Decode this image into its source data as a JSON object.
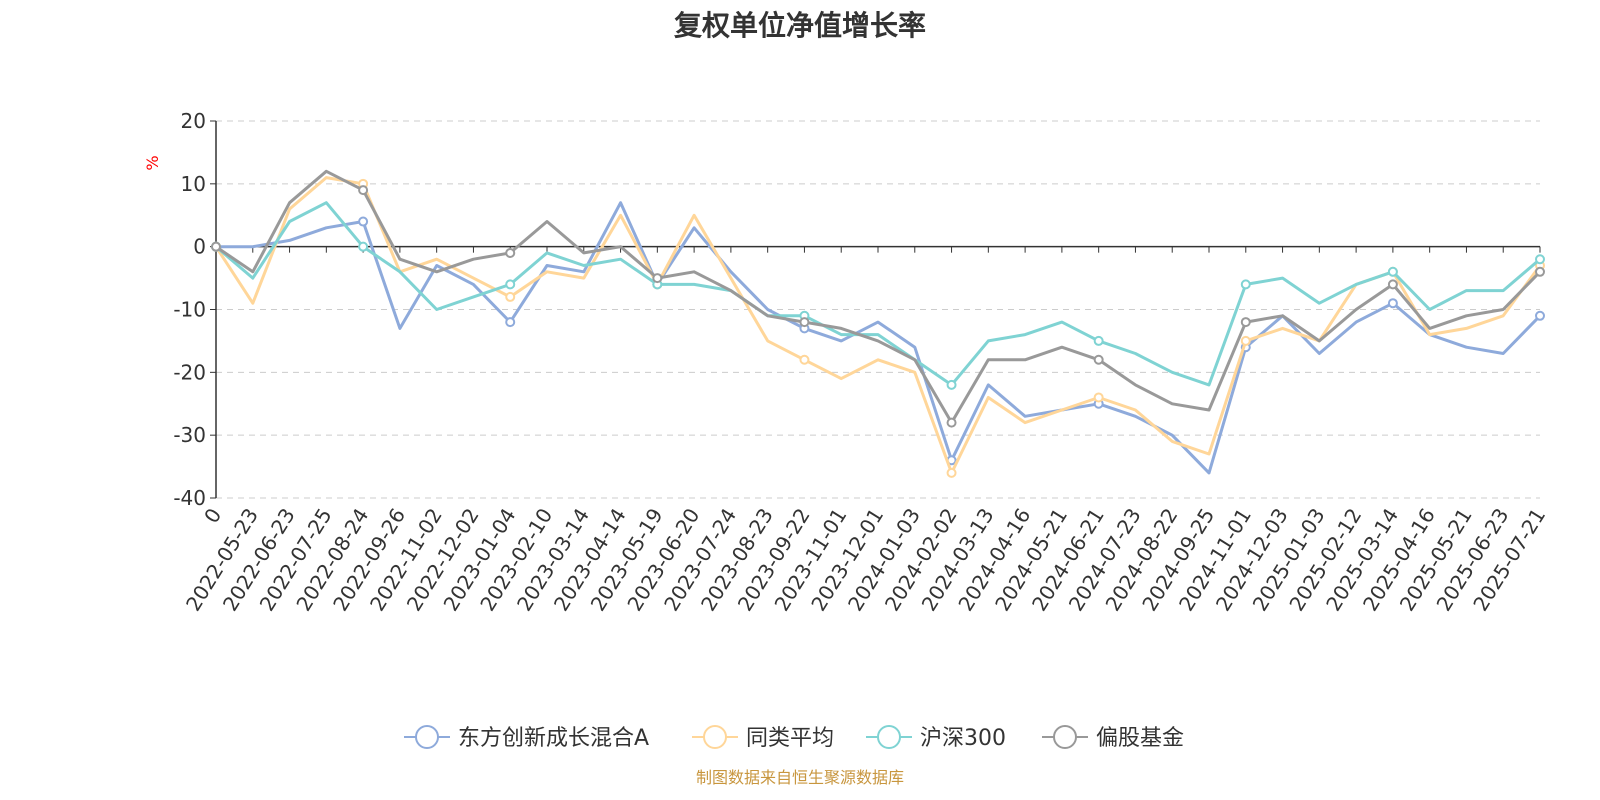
{
  "title": "复权单位净值增长率",
  "source": "制图数据来自恒生聚源数据库",
  "colors": {
    "fund": "#8eaadb",
    "peer": "#ffd699",
    "hs300": "#7fd3d3",
    "equity": "#999999",
    "axis": "#333333",
    "grid": "#cccccc",
    "ylabel": "#ff0000",
    "source": "#c8963e"
  },
  "chart_data": {
    "type": "line",
    "ylabel": "%",
    "ylim": [
      -40,
      20
    ],
    "yticks": [
      "20",
      "10",
      "0",
      "-10",
      "-20",
      "-30",
      "-40"
    ],
    "grid": true,
    "legend_position": "bottom",
    "x": [
      "0",
      "2022-05-23",
      "2022-06-23",
      "2022-07-25",
      "2022-08-24",
      "2022-09-26",
      "2022-11-02",
      "2022-12-02",
      "2023-01-04",
      "2023-02-10",
      "2023-03-14",
      "2023-04-14",
      "2023-05-19",
      "2023-06-20",
      "2023-07-24",
      "2023-08-23",
      "2023-09-22",
      "2023-11-01",
      "2023-12-01",
      "2024-01-03",
      "2024-02-02",
      "2024-03-13",
      "2024-04-16",
      "2024-05-21",
      "2024-06-21",
      "2024-07-23",
      "2024-08-22",
      "2024-09-25",
      "2024-11-01",
      "2024-12-03",
      "2025-01-03",
      "2025-02-12",
      "2025-03-14",
      "2025-04-16",
      "2025-05-21",
      "2025-06-23",
      "2025-07-21"
    ],
    "series": [
      {
        "name": "东方创新成长混合A",
        "values": [
          0,
          0,
          1,
          3,
          4,
          -13,
          -3,
          -6,
          -12,
          -3,
          -4,
          7,
          -6,
          3,
          -4,
          -10,
          -13,
          -15,
          -12,
          -16,
          -34,
          -22,
          -27,
          -26,
          -25,
          -27,
          -30,
          -36,
          -16,
          -11,
          -17,
          -12,
          -9,
          -14,
          -16,
          -17,
          -11
        ]
      },
      {
        "name": "同类平均",
        "values": [
          0,
          -9,
          6,
          11,
          10,
          -4,
          -2,
          -5,
          -8,
          -4,
          -5,
          5,
          -6,
          5,
          -5,
          -15,
          -18,
          -21,
          -18,
          -20,
          -36,
          -24,
          -28,
          -26,
          -24,
          -26,
          -31,
          -33,
          -15,
          -13,
          -15,
          -6,
          -4,
          -14,
          -13,
          -11,
          -3
        ]
      },
      {
        "name": "沪深300",
        "values": [
          0,
          -5,
          4,
          7,
          0,
          -4,
          -10,
          -8,
          -6,
          -1,
          -3,
          -2,
          -6,
          -6,
          -7,
          -11,
          -11,
          -14,
          -14,
          -18,
          -22,
          -15,
          -14,
          -12,
          -15,
          -17,
          -20,
          -22,
          -6,
          -5,
          -9,
          -6,
          -4,
          -10,
          -7,
          -7,
          -2
        ]
      },
      {
        "name": "偏股基金",
        "values": [
          0,
          -4,
          7,
          12,
          9,
          -2,
          -4,
          -2,
          -1,
          4,
          -1,
          0,
          -5,
          -4,
          -7,
          -11,
          -12,
          -13,
          -15,
          -18,
          -28,
          -18,
          -18,
          -16,
          -18,
          -22,
          -25,
          -26,
          -12,
          -11,
          -15,
          -10,
          -6,
          -13,
          -11,
          -10,
          -4
        ]
      }
    ]
  },
  "legend": [
    {
      "key": "fund",
      "label": "东方创新成长混合A"
    },
    {
      "key": "peer",
      "label": "同类平均"
    },
    {
      "key": "hs300",
      "label": "沪深300"
    },
    {
      "key": "equity",
      "label": "偏股基金"
    }
  ]
}
